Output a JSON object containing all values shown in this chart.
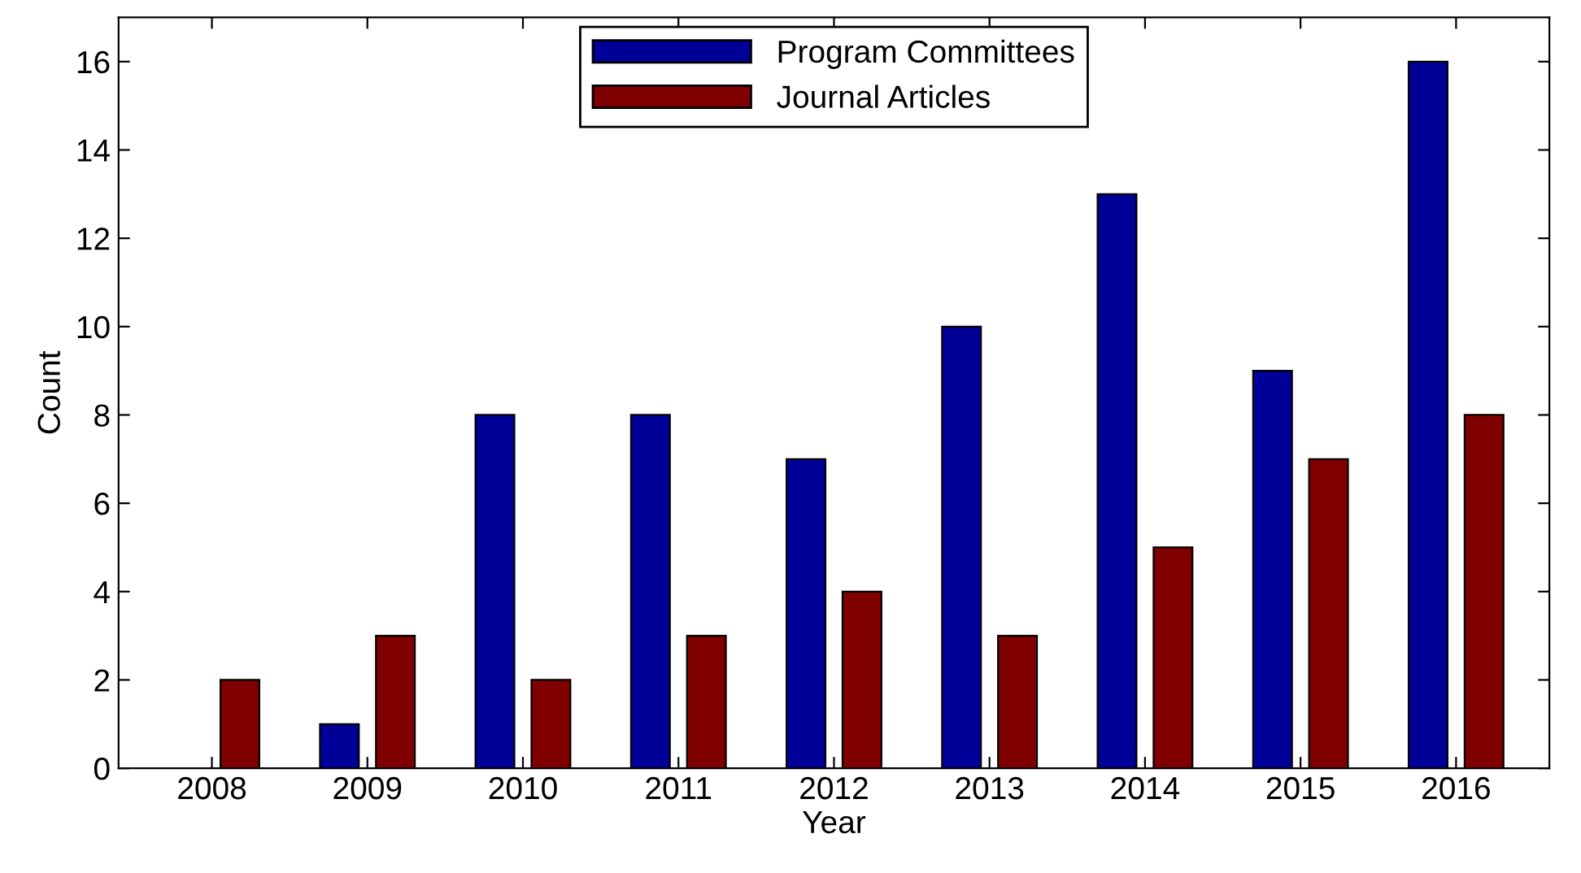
{
  "chart_data": {
    "type": "bar",
    "xlabel": "Year",
    "ylabel": "Count",
    "categories": [
      "2008",
      "2009",
      "2010",
      "2011",
      "2012",
      "2013",
      "2014",
      "2015",
      "2016"
    ],
    "series": [
      {
        "name": "Program Committees",
        "color": "#000099",
        "values": [
          0,
          1,
          8,
          8,
          7,
          10,
          13,
          9,
          16
        ]
      },
      {
        "name": "Journal Articles",
        "color": "#800000",
        "values": [
          2,
          3,
          2,
          3,
          4,
          3,
          5,
          7,
          8
        ]
      }
    ],
    "ylim": [
      0,
      17
    ],
    "yticks": [
      0,
      2,
      4,
      6,
      8,
      10,
      12,
      14,
      16
    ],
    "grid": false,
    "legend": "top"
  }
}
